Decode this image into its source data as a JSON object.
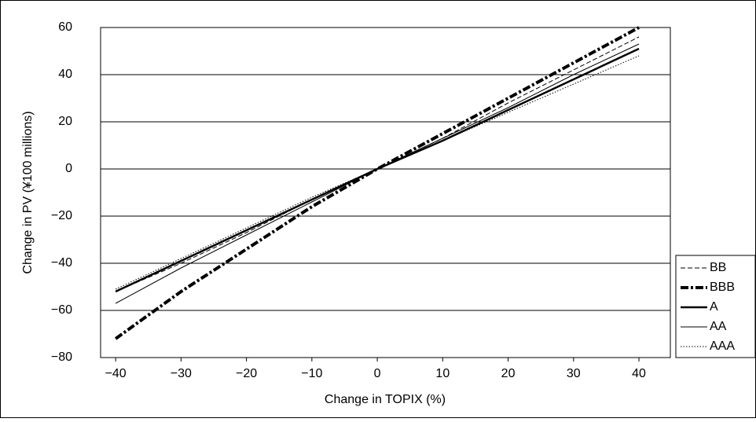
{
  "chart_data": {
    "type": "line",
    "x_label": "Change in TOPIX (%)",
    "y_label": "Change in PV (¥100 millions)",
    "x": [
      -40,
      -30,
      -20,
      -10,
      0,
      10,
      20,
      30,
      40
    ],
    "xlim": [
      -42.3,
      44.8
    ],
    "xticks": [
      {
        "value": -40,
        "label": "−40"
      },
      {
        "value": -30,
        "label": "−30"
      },
      {
        "value": -20,
        "label": "−20"
      },
      {
        "value": -10,
        "label": "−10"
      },
      0,
      10,
      20,
      30,
      40
    ],
    "ylim": [
      -80,
      60
    ],
    "yticks": [
      {
        "value": -80,
        "label": "−80"
      },
      {
        "value": -60,
        "label": "−60"
      },
      {
        "value": -40,
        "label": "−40"
      },
      {
        "value": -20,
        "label": "−20"
      },
      0,
      20,
      40,
      60
    ],
    "grid": true,
    "legend": "right",
    "series": [
      {
        "name": "BB",
        "color": "#000000",
        "style": "dashed",
        "values": [
          -52,
          -40,
          -27,
          -13,
          0,
          13,
          28,
          42,
          56
        ]
      },
      {
        "name": "BBB",
        "color": "#000000",
        "style": "bold-dash-dot",
        "values": [
          -72,
          -52,
          -34,
          -16,
          0,
          15,
          30,
          45,
          60
        ]
      },
      {
        "name": "A",
        "color": "#000000",
        "style": "bold",
        "values": [
          -52,
          -39,
          -26,
          -13,
          0,
          12,
          25,
          38,
          51
        ]
      },
      {
        "name": "AA",
        "color": "#000000",
        "style": "solid",
        "values": [
          -57,
          -42,
          -28,
          -14,
          0,
          13,
          26,
          40,
          53
        ]
      },
      {
        "name": "AAA",
        "color": "#000000",
        "style": "dotted",
        "values": [
          -51,
          -38,
          -25,
          -12,
          0,
          12,
          24,
          36,
          48
        ]
      }
    ]
  }
}
